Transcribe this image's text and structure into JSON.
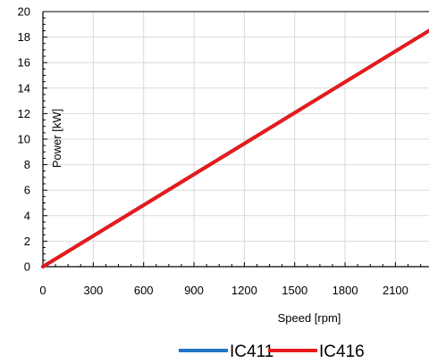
{
  "chart_data": {
    "type": "line",
    "xlabel": "Speed [rpm]",
    "ylabel": "Power [kW]",
    "xlim": [
      0,
      2300
    ],
    "ylim": [
      0,
      20
    ],
    "xticks": [
      0,
      300,
      600,
      900,
      1200,
      1500,
      1800,
      2100
    ],
    "yticks": [
      0,
      2,
      4,
      6,
      8,
      10,
      12,
      14,
      16,
      18,
      20
    ],
    "grid": true,
    "legend_position": "bottom",
    "series": [
      {
        "name": "IC411",
        "color": "#1f77c4",
        "x": [
          0,
          2300
        ],
        "y": [
          0,
          18.5
        ]
      },
      {
        "name": "IC416",
        "color": "#e8191a",
        "x": [
          0,
          2300
        ],
        "y": [
          0,
          18.5
        ]
      }
    ]
  }
}
